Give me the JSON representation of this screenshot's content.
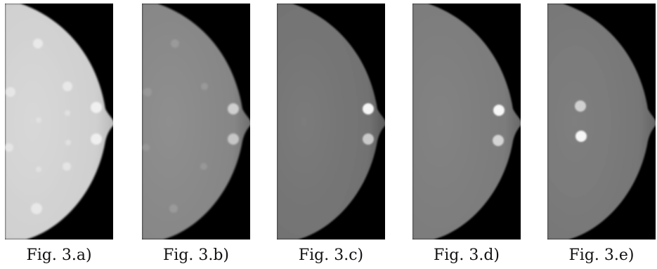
{
  "figures": [
    {
      "caption": "Fig. 3.a)"
    },
    {
      "caption": "Fig. 3.b)"
    },
    {
      "caption": "Fig. 3.c)"
    },
    {
      "caption": "Fig. 3.d)"
    },
    {
      "caption": "Fig. 3.e)"
    }
  ],
  "colors": {
    "background": "#000000",
    "page": "#ffffff",
    "caption_text": "#111111"
  }
}
